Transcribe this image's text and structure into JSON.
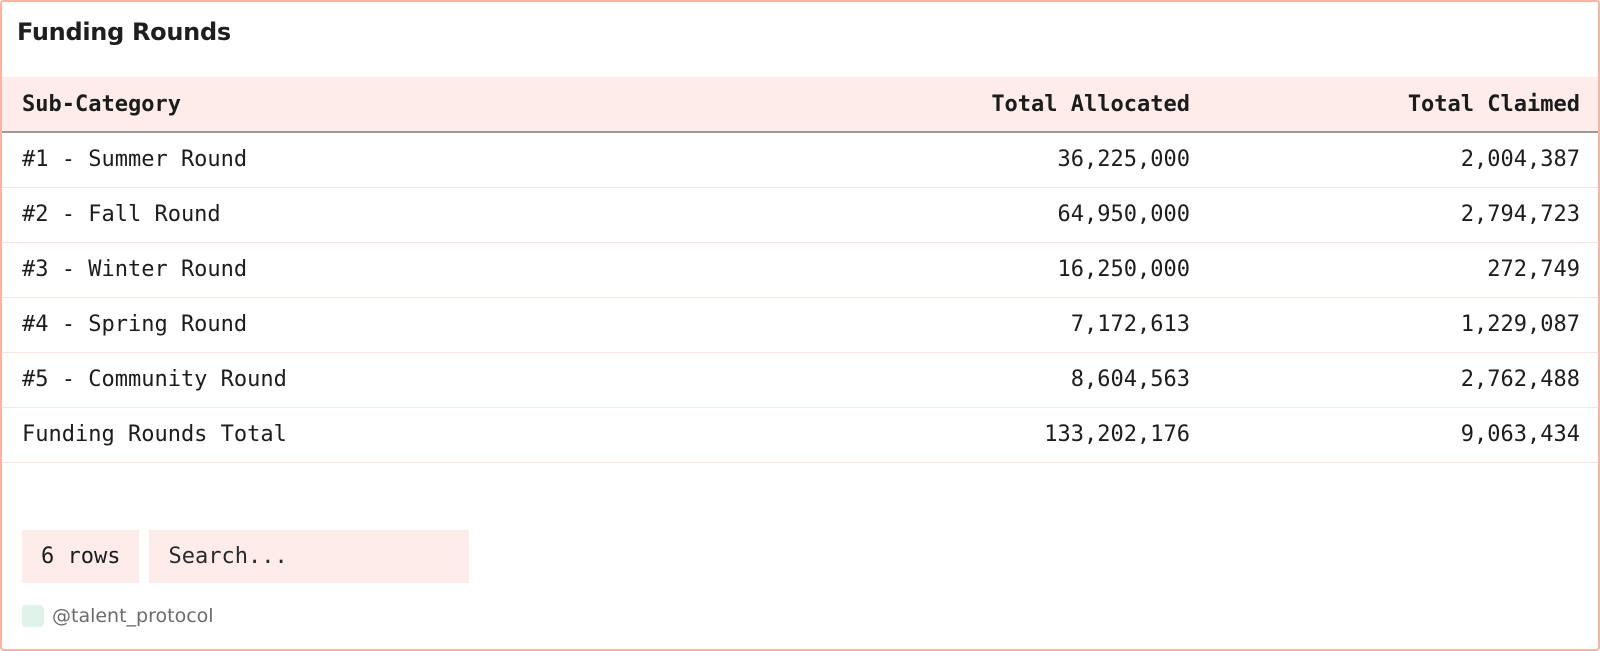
{
  "title": "Funding Rounds",
  "table": {
    "headers": [
      "Sub-Category",
      "Total Allocated",
      "Total Claimed"
    ],
    "rows": [
      [
        "#1 - Summer Round",
        "36,225,000",
        "2,004,387"
      ],
      [
        "#2 - Fall Round",
        "64,950,000",
        "2,794,723"
      ],
      [
        "#3 - Winter Round",
        "16,250,000",
        "272,749"
      ],
      [
        "#4 - Spring Round",
        "7,172,613",
        "1,229,087"
      ],
      [
        "#5 - Community Round",
        "8,604,563",
        "2,762,488"
      ],
      [
        "Funding Rounds Total",
        "133,202,176",
        "9,063,434"
      ]
    ]
  },
  "footer": {
    "rows_count": "6 rows",
    "search_placeholder": "Search...",
    "search_value": ""
  },
  "attribution": {
    "handle": "@talent_protocol",
    "icon": "creator-avatar-icon"
  },
  "colors": {
    "border": "#f6b3a6",
    "header_bg": "#fdecea",
    "attribution_icon": "#dff3ea"
  }
}
